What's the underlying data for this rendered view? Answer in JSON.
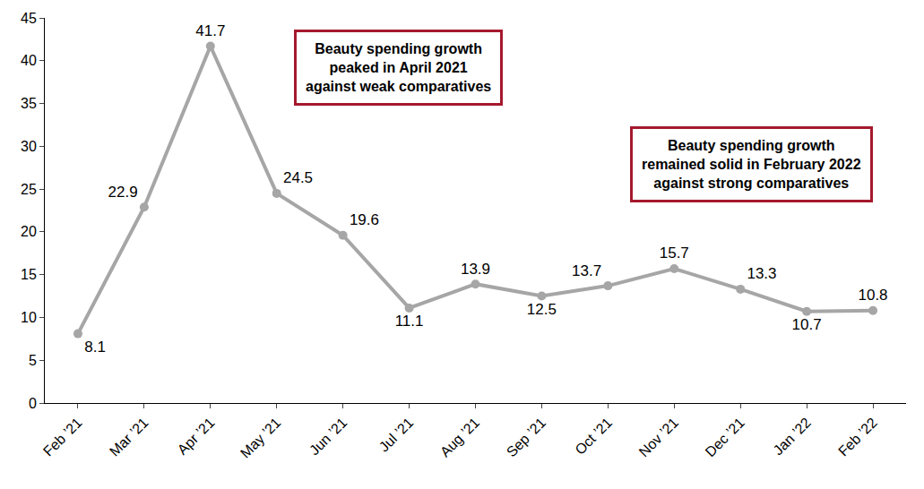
{
  "chart_data": {
    "type": "line",
    "categories": [
      "Feb ’21",
      "Mar ’21",
      "Apr ’21",
      "May ’21",
      "Jun ’21",
      "Jul ’21",
      "Aug ’21",
      "Sep ’21",
      "Oct ’21",
      "Nov ’21",
      "Dec ’21",
      "Jan ’22",
      "Feb ’22"
    ],
    "values": [
      8.1,
      22.9,
      41.7,
      24.5,
      19.6,
      11.1,
      13.9,
      12.5,
      13.7,
      15.7,
      13.3,
      10.7,
      10.8
    ],
    "color": "#a6a6a6",
    "marker": "circle",
    "ylim": [
      0,
      45
    ],
    "yticks": [
      0,
      5,
      10,
      15,
      20,
      25,
      30,
      35,
      40,
      45
    ],
    "grid": false,
    "data_labels": true,
    "annotations": [
      {
        "lines": [
          "Beauty spending growth",
          "peaked in April 2021",
          "against weak comparatives"
        ]
      },
      {
        "lines": [
          "Beauty spending growth",
          "remained solid in February 2022",
          "against strong comparatives"
        ]
      }
    ]
  }
}
